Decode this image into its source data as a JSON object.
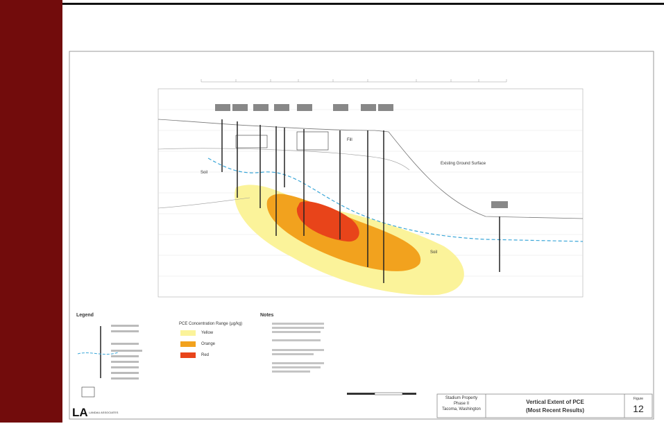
{
  "figure": {
    "section_labels": {
      "fill": "Fill",
      "soil_left": "Soil",
      "soil_right": "Soil",
      "ground": "Existing Ground Surface"
    },
    "legend": {
      "title": "Legend",
      "pce_title": "PCE Concentration Range (µg/kg)",
      "ranges": [
        "Yellow",
        "Orange",
        "Red"
      ]
    },
    "notes": {
      "title": "Notes"
    },
    "title_block": {
      "project": "Stadium Property",
      "phase": "Phase II",
      "location": "Tacoma, Washington",
      "title": "Vertical Extent of PCE",
      "subtitle": "(Most Recent Results)",
      "figure_label": "Figure",
      "figure_number": "12",
      "company": "LANDAU ASSOCIATES"
    }
  }
}
